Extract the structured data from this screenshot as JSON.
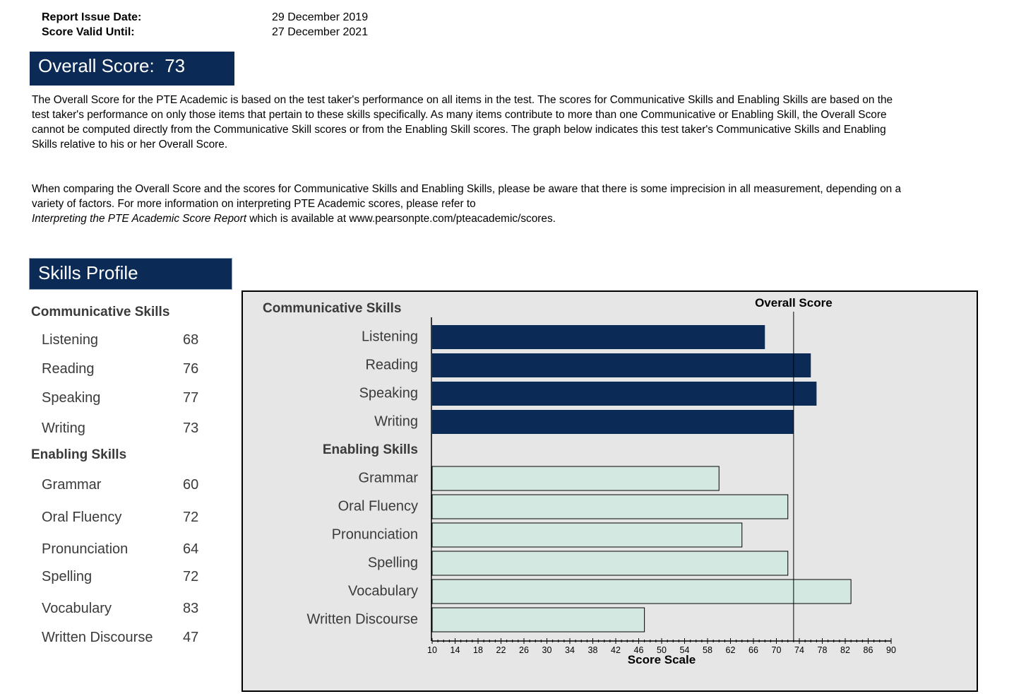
{
  "report": {
    "issue_label": "Report Issue Date:",
    "issue_value": "29 December 2019",
    "valid_label": "Score Valid Until:",
    "valid_value": "27 December 2021"
  },
  "overall": {
    "label": "Overall Score:",
    "value": "73"
  },
  "description": {
    "para1": "The Overall Score for the PTE Academic is based on the test taker's performance on all items in the test.  The scores for Communicative Skills and Enabling Skills are based on the test taker's performance on only those items that pertain to these skills specifically.  As many items contribute to more than one Communicative or Enabling Skill, the Overall Score cannot be computed directly from the Communicative Skill scores or from the Enabling Skill scores.  The graph below indicates this test taker's Communicative Skills and Enabling Skills relative to his or her Overall Score.",
    "para2_lead": "When comparing the Overall Score and the scores for Communicative Skills and Enabling Skills, please be aware that there is some imprecision in all measurement, depending on a variety of factors.  For more information on interpreting PTE Academic scores, please refer to",
    "para2_italic": "Interpreting the PTE Academic Score Report",
    "para2_tail": " which is available at www.pearsonpte.com/pteacademic/scores."
  },
  "skills_profile": {
    "title": "Skills Profile",
    "communicative_heading": "Communicative Skills",
    "communicative": [
      {
        "name": "Listening",
        "score": "68"
      },
      {
        "name": "Reading",
        "score": "76"
      },
      {
        "name": "Speaking",
        "score": "77"
      },
      {
        "name": "Writing",
        "score": "73"
      }
    ],
    "enabling_heading": "Enabling Skills",
    "enabling": [
      {
        "name": "Grammar",
        "score": "60"
      },
      {
        "name": "Oral Fluency",
        "score": "72"
      },
      {
        "name": "Pronunciation",
        "score": "64"
      },
      {
        "name": "Spelling",
        "score": "72"
      },
      {
        "name": "Vocabulary",
        "score": "83"
      },
      {
        "name": "Written Discourse",
        "score": "47"
      }
    ]
  },
  "chart_data": {
    "type": "bar",
    "orientation": "horizontal",
    "xlabel": "Score Scale",
    "xlim": [
      10,
      90
    ],
    "xticks": [
      10,
      14,
      18,
      22,
      26,
      30,
      34,
      38,
      42,
      46,
      50,
      54,
      58,
      62,
      66,
      70,
      74,
      78,
      82,
      86,
      90
    ],
    "reference_line": {
      "label": "Overall Score",
      "value": 73
    },
    "colors": {
      "communicative": "#0b2a55",
      "enabling": "#d4e8e2",
      "background": "#e6e6e6"
    },
    "groups": [
      {
        "heading": "Communicative Skills",
        "categories": [
          "Listening",
          "Reading",
          "Speaking",
          "Writing"
        ],
        "values": [
          68,
          76,
          77,
          73
        ]
      },
      {
        "heading": "Enabling Skills",
        "categories": [
          "Grammar",
          "Oral Fluency",
          "Pronunciation",
          "Spelling",
          "Vocabulary",
          "Written Discourse"
        ],
        "values": [
          60,
          72,
          64,
          72,
          83,
          47
        ]
      }
    ]
  }
}
